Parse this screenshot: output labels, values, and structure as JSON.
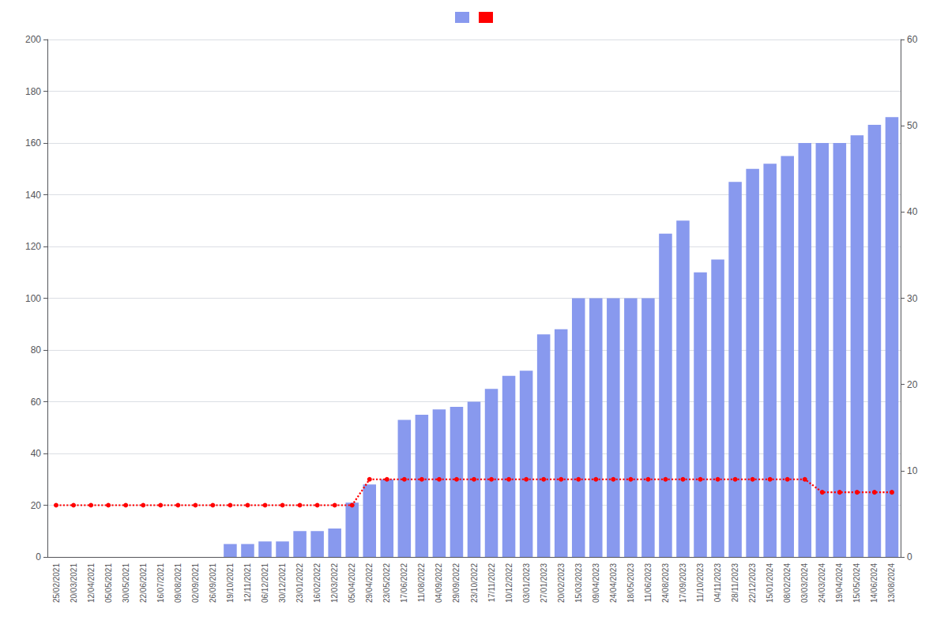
{
  "chart_data": {
    "type": "bar",
    "categories": [
      "25/02/2021",
      "20/03/2021",
      "12/04/2021",
      "05/05/2021",
      "30/05/2021",
      "22/06/2021",
      "16/07/2021",
      "09/08/2021",
      "02/09/2021",
      "26/09/2021",
      "19/10/2021",
      "12/11/2021",
      "06/12/2021",
      "30/12/2021",
      "23/01/2022",
      "16/02/2022",
      "12/03/2022",
      "05/04/2022",
      "29/04/2022",
      "23/05/2022",
      "17/06/2022",
      "11/08/2022",
      "04/09/2022",
      "29/09/2022",
      "23/10/2022",
      "17/11/2022",
      "10/12/2022",
      "03/01/2023",
      "27/01/2023",
      "20/02/2023",
      "15/03/2023",
      "09/04/2023",
      "24/04/2023",
      "18/05/2023",
      "11/06/2023",
      "24/08/2023",
      "17/09/2023",
      "11/10/2023",
      "04/11/2023",
      "28/11/2023",
      "22/12/2023",
      "15/01/2024",
      "08/02/2024",
      "03/03/2024",
      "24/03/2024",
      "19/04/2024",
      "15/05/2024",
      "14/06/2024",
      "13/08/2024"
    ],
    "series": [
      {
        "type": "bar",
        "color": "#8899ee",
        "values": [
          0,
          0,
          0,
          0,
          0,
          0,
          0,
          0,
          0,
          0,
          5,
          5,
          6,
          6,
          10,
          10,
          11,
          21,
          28,
          30,
          53,
          55,
          57,
          58,
          60,
          65,
          70,
          72,
          86,
          88,
          100,
          100,
          100,
          100,
          100,
          125,
          130,
          110,
          115,
          145,
          150,
          152,
          155,
          160,
          160,
          160,
          163,
          167,
          170
        ]
      },
      {
        "type": "line",
        "color": "#ff0000",
        "line_style": "dotted",
        "marker": "circle",
        "values": [
          20,
          20,
          20,
          20,
          20,
          20,
          20,
          20,
          20,
          20,
          20,
          20,
          20,
          20,
          20,
          20,
          20,
          20,
          30,
          30,
          30,
          30,
          30,
          30,
          30,
          30,
          30,
          30,
          30,
          30,
          30,
          30,
          30,
          30,
          30,
          30,
          30,
          30,
          30,
          30,
          30,
          30,
          30,
          30,
          25,
          25,
          25,
          25,
          25
        ]
      }
    ],
    "ylim": [
      0,
      200
    ],
    "yticks": [
      0,
      20,
      40,
      60,
      80,
      100,
      120,
      140,
      160,
      180,
      200
    ],
    "y2lim": [
      0,
      60
    ],
    "y2ticks": [
      0,
      10,
      20,
      30,
      40,
      50,
      60
    ],
    "grid": true,
    "legend": "top"
  }
}
